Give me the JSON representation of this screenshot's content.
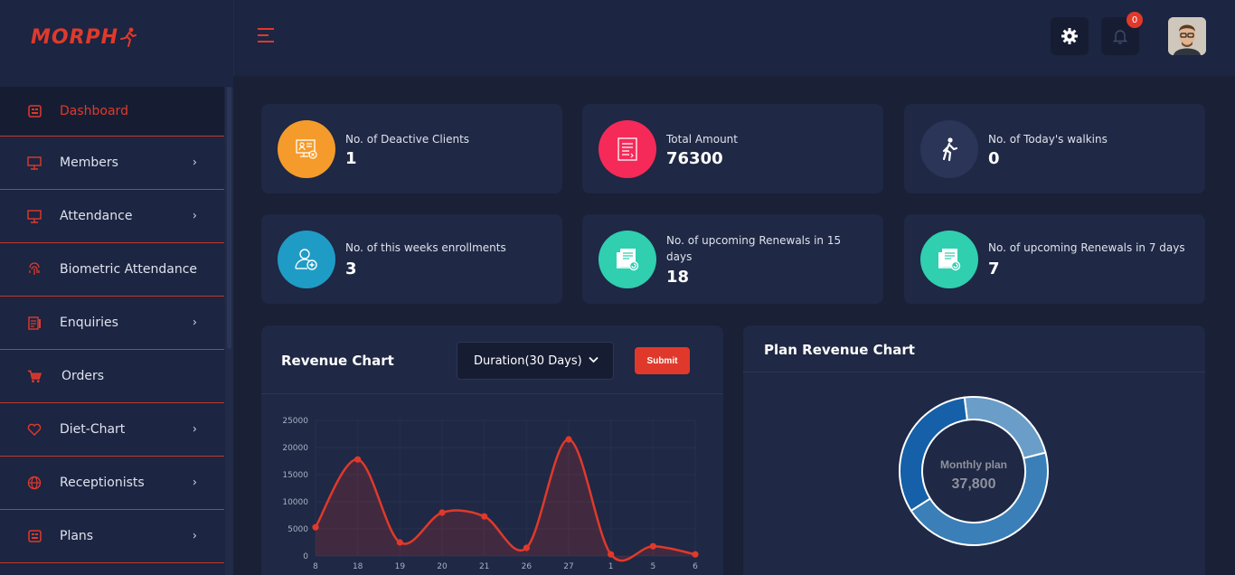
{
  "brand": {
    "name": "MORPH"
  },
  "header": {
    "notifications_count": "0"
  },
  "sidebar": {
    "items": [
      {
        "label": "Dashboard",
        "icon": "dashboard-icon",
        "active": true,
        "has_submenu": false
      },
      {
        "label": "Members",
        "icon": "monitor-icon",
        "has_submenu": true
      },
      {
        "label": "Attendance",
        "icon": "monitor-icon",
        "has_submenu": true
      },
      {
        "label": "Biometric Attendance",
        "icon": "fingerprint-icon",
        "has_submenu": false
      },
      {
        "label": "Enquiries",
        "icon": "clipboard-icon",
        "has_submenu": true
      },
      {
        "label": "Orders",
        "icon": "cart-icon",
        "has_submenu": false
      },
      {
        "label": "Diet-Chart",
        "icon": "heart-icon",
        "has_submenu": true
      },
      {
        "label": "Receptionists",
        "icon": "globe-icon",
        "has_submenu": true
      },
      {
        "label": "Plans",
        "icon": "plans-icon",
        "has_submenu": true
      }
    ]
  },
  "stats": [
    {
      "label": "No. of Deactive Clients",
      "value": "1",
      "color": "#f59b2b",
      "icon": "deactive-client-icon"
    },
    {
      "label": "Total Amount",
      "value": "76300",
      "color": "#f52a59",
      "icon": "invoice-icon"
    },
    {
      "label": "No. of Today's walkins",
      "value": "0",
      "color": "#2b3558",
      "icon": "walking-person-icon"
    },
    {
      "label": "No. of this weeks enrollments",
      "value": "3",
      "color": "#1e9cc6",
      "icon": "add-user-icon"
    },
    {
      "label": "No. of upcoming Renewals in 15",
      "label2": "days",
      "value": "18",
      "color": "#2fcfb0",
      "icon": "renewal-icon"
    },
    {
      "label": "No. of upcoming Renewals in 7 days",
      "value": "7",
      "color": "#2fcfb0",
      "icon": "renewal-icon"
    }
  ],
  "revenue_chart": {
    "title": "Revenue Chart",
    "duration_select": "Duration(30 Days)",
    "submit_label": "Submit"
  },
  "plan_chart": {
    "title": "Plan Revenue Chart",
    "center_label": "Monthly plan",
    "center_value": "37,800"
  },
  "chart_data": [
    {
      "type": "area",
      "title": "Revenue Chart",
      "categories": [
        "8",
        "18",
        "19",
        "20",
        "21",
        "26",
        "27",
        "1",
        "5",
        "6"
      ],
      "values": [
        5300,
        17800,
        2500,
        8000,
        7300,
        1500,
        21500,
        300,
        1800,
        300
      ],
      "ylim": [
        0,
        25000
      ],
      "yticks": [
        0,
        5000,
        10000,
        15000,
        20000,
        25000
      ],
      "color": "#e0392b"
    },
    {
      "type": "pie",
      "title": "Plan Revenue Chart",
      "slices": [
        {
          "value": 0.45,
          "color": "#3a7fb8"
        },
        {
          "value": 0.32,
          "color": "#1560a8"
        },
        {
          "value": 0.23,
          "color": "#6a9ec9"
        }
      ],
      "center_label": "Monthly plan",
      "center_value": "37,800"
    }
  ]
}
